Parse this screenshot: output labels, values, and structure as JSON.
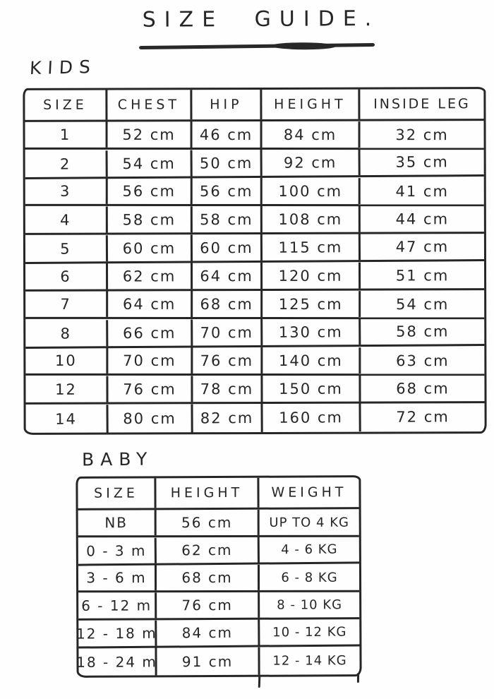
{
  "title": "SIZE GUIDE.",
  "ink_color": "#262626",
  "background_color": "#ffffff",
  "kids_table": {
    "label": "KIDS",
    "headers": [
      "SIZE",
      "CHEST",
      "HIP",
      "HEIGHT",
      "INSIDE LEG"
    ],
    "rows": [
      {
        "size": "1",
        "chest": "52 cm",
        "hip": "46 cm",
        "height": "84 cm",
        "inside_leg": "32 cm"
      },
      {
        "size": "2",
        "chest": "54 cm",
        "hip": "50 cm",
        "height": "92 cm",
        "inside_leg": "35 cm"
      },
      {
        "size": "3",
        "chest": "56 cm",
        "hip": "56 cm",
        "height": "100 cm",
        "inside_leg": "41 cm"
      },
      {
        "size": "4",
        "chest": "58 cm",
        "hip": "58 cm",
        "height": "108 cm",
        "inside_leg": "44 cm"
      },
      {
        "size": "5",
        "chest": "60 cm",
        "hip": "60 cm",
        "height": "115 cm",
        "inside_leg": "47 cm"
      },
      {
        "size": "6",
        "chest": "62 cm",
        "hip": "64 cm",
        "height": "120 cm",
        "inside_leg": "51 cm"
      },
      {
        "size": "7",
        "chest": "64 cm",
        "hip": "68 cm",
        "height": "125 cm",
        "inside_leg": "54 cm"
      },
      {
        "size": "8",
        "chest": "66 cm",
        "hip": "70 cm",
        "height": "130 cm",
        "inside_leg": "58 cm"
      },
      {
        "size": "10",
        "chest": "70 cm",
        "hip": "76 cm",
        "height": "140 cm",
        "inside_leg": "63 cm"
      },
      {
        "size": "12",
        "chest": "76 cm",
        "hip": "78 cm",
        "height": "150 cm",
        "inside_leg": "68 cm"
      },
      {
        "size": "14",
        "chest": "80 cm",
        "hip": "82 cm",
        "height": "160 cm",
        "inside_leg": "72 cm"
      }
    ]
  },
  "baby_table": {
    "label": "BABY",
    "headers": [
      "SIZE",
      "HEIGHT",
      "WEIGHT"
    ],
    "rows": [
      {
        "size": "NB",
        "height": "56 cm",
        "weight": "UP TO 4 KG"
      },
      {
        "size": "0 - 3 m",
        "height": "62 cm",
        "weight": "4 - 6 KG"
      },
      {
        "size": "3 - 6 m",
        "height": "68 cm",
        "weight": "6 - 8 KG"
      },
      {
        "size": "6 - 12 m",
        "height": "76 cm",
        "weight": "8 - 10 KG"
      },
      {
        "size": "12 - 18 m",
        "height": "84 cm",
        "weight": "10 - 12 KG"
      },
      {
        "size": "18 - 24 m",
        "height": "91 cm",
        "weight": "12 - 14 KG"
      }
    ]
  }
}
